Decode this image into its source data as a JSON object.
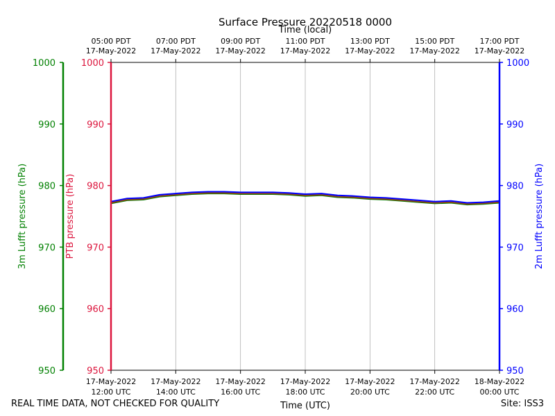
{
  "chart_data": {
    "type": "line",
    "title": "Surface Pressure 20220518 0000",
    "top_axis_title": "Time (local)",
    "xlabel": "Time (UTC)",
    "x_range": [
      "17-May-2022 12:00 UTC",
      "18-May-2022 00:00 UTC"
    ],
    "x_ticks_bottom": [
      [
        "17-May-2022",
        "12:00 UTC"
      ],
      [
        "17-May-2022",
        "14:00 UTC"
      ],
      [
        "17-May-2022",
        "16:00 UTC"
      ],
      [
        "17-May-2022",
        "18:00 UTC"
      ],
      [
        "17-May-2022",
        "20:00 UTC"
      ],
      [
        "17-May-2022",
        "22:00 UTC"
      ],
      [
        "18-May-2022",
        "00:00 UTC"
      ]
    ],
    "x_ticks_top": [
      [
        "05:00 PDT",
        "17-May-2022"
      ],
      [
        "07:00 PDT",
        "17-May-2022"
      ],
      [
        "09:00 PDT",
        "17-May-2022"
      ],
      [
        "11:00 PDT",
        "17-May-2022"
      ],
      [
        "13:00 PDT",
        "17-May-2022"
      ],
      [
        "15:00 PDT",
        "17-May-2022"
      ],
      [
        "17:00 PDT",
        "17-May-2022"
      ]
    ],
    "y_axes": [
      {
        "label": "3m Lufft pressure (hPa)",
        "color": "#008000",
        "ylim": [
          950,
          1000
        ],
        "ticks": [
          "950",
          "960",
          "970",
          "980",
          "990",
          "1000"
        ]
      },
      {
        "label": "PTB pressure (hPa)",
        "color": "#dc143c",
        "ylim": [
          950,
          1000
        ],
        "ticks": [
          "950",
          "960",
          "970",
          "980",
          "990",
          "1000"
        ]
      },
      {
        "label": "2m Lufft pressure (hPa)",
        "color": "#0000ff",
        "ylim": [
          950,
          1000
        ],
        "ticks": [
          "950",
          "960",
          "970",
          "980",
          "990",
          "1000"
        ]
      }
    ],
    "grid": "vertical",
    "series": [
      {
        "color": "#008000",
        "x": [
          "12:00",
          "12:30",
          "13:00",
          "13:30",
          "14:00",
          "14:30",
          "15:00",
          "15:30",
          "16:00",
          "16:30",
          "17:00",
          "17:30",
          "18:00",
          "18:30",
          "19:00",
          "19:30",
          "20:00",
          "20:30",
          "21:00",
          "21:30",
          "22:00",
          "22:30",
          "23:00",
          "23:30",
          "00:00"
        ],
        "values": [
          977.1,
          977.6,
          977.7,
          978.2,
          978.4,
          978.6,
          978.7,
          978.7,
          978.6,
          978.6,
          978.6,
          978.5,
          978.3,
          978.4,
          978.1,
          978.0,
          977.8,
          977.7,
          977.5,
          977.3,
          977.1,
          977.2,
          976.9,
          977.0,
          977.2
        ]
      },
      {
        "color": "#8b4513",
        "x": [
          "12:00",
          "12:30",
          "13:00",
          "13:30",
          "14:00",
          "14:30",
          "15:00",
          "15:30",
          "16:00",
          "16:30",
          "17:00",
          "17:30",
          "18:00",
          "18:30",
          "19:00",
          "19:30",
          "20:00",
          "20:30",
          "21:00",
          "21:30",
          "22:00",
          "22:30",
          "23:00",
          "23:30",
          "00:00"
        ],
        "values": [
          977.2,
          977.7,
          977.8,
          978.3,
          978.5,
          978.7,
          978.8,
          978.8,
          978.7,
          978.7,
          978.7,
          978.6,
          978.4,
          978.5,
          978.2,
          978.1,
          977.9,
          977.8,
          977.6,
          977.4,
          977.2,
          977.3,
          977.0,
          977.1,
          977.3
        ]
      },
      {
        "color": "#0000ff",
        "x": [
          "12:00",
          "12:30",
          "13:00",
          "13:30",
          "14:00",
          "14:30",
          "15:00",
          "15:30",
          "16:00",
          "16:30",
          "17:00",
          "17:30",
          "18:00",
          "18:30",
          "19:00",
          "19:30",
          "20:00",
          "20:30",
          "21:00",
          "21:30",
          "22:00",
          "22:30",
          "23:00",
          "23:30",
          "00:00"
        ],
        "values": [
          977.4,
          977.9,
          978.0,
          978.5,
          978.7,
          978.9,
          979.0,
          979.0,
          978.9,
          978.9,
          978.9,
          978.8,
          978.6,
          978.7,
          978.4,
          978.3,
          978.1,
          978.0,
          977.8,
          977.6,
          977.4,
          977.5,
          977.2,
          977.3,
          977.5
        ]
      }
    ]
  },
  "footer": {
    "left_text": "REAL TIME DATA, NOT CHECKED FOR QUALITY",
    "right_text": "Site: ISS3"
  }
}
